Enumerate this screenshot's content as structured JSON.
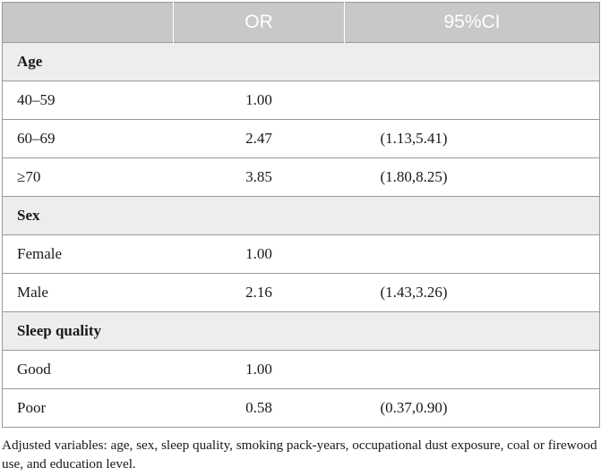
{
  "table": {
    "headers": [
      "",
      "OR",
      "95%CI"
    ],
    "sections": [
      {
        "title": "Age",
        "rows": [
          {
            "label": "40–59",
            "or": "1.00",
            "ci": ""
          },
          {
            "label": "60–69",
            "or": "2.47",
            "ci": "(1.13,5.41)"
          },
          {
            "label": "≥70",
            "or": "3.85",
            "ci": "(1.80,8.25)"
          }
        ]
      },
      {
        "title": "Sex",
        "rows": [
          {
            "label": "Female",
            "or": "1.00",
            "ci": ""
          },
          {
            "label": "Male",
            "or": "2.16",
            "ci": "(1.43,3.26)"
          }
        ]
      },
      {
        "title": "Sleep quality",
        "rows": [
          {
            "label": "Good",
            "or": "1.00",
            "ci": ""
          },
          {
            "label": "Poor",
            "or": "0.58",
            "ci": "(0.37,0.90)"
          }
        ]
      }
    ]
  },
  "footnote": "Adjusted variables: age, sex, sleep quality, smoking pack-years, occupational dust exposure, coal or firewood use, and education level."
}
